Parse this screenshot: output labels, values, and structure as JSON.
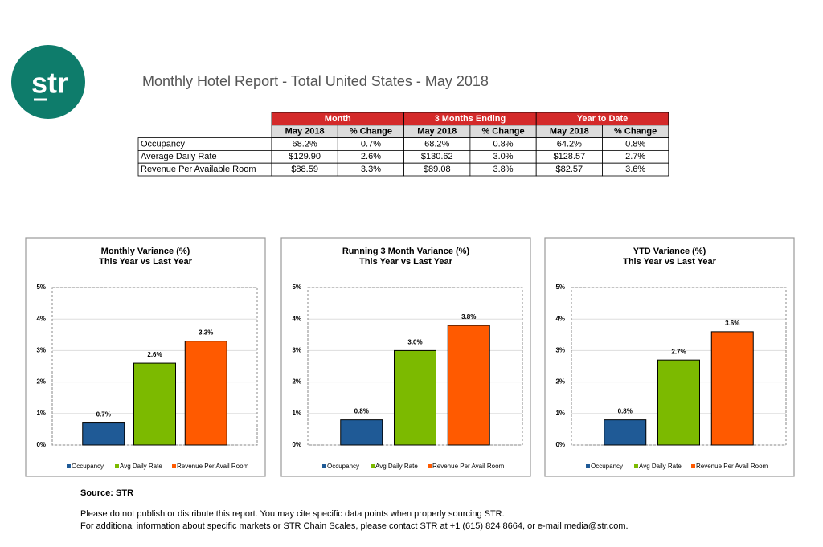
{
  "header": {
    "logo": "str",
    "title": "Monthly Hotel Report - Total United States - May 2018"
  },
  "table": {
    "groups": [
      "Month",
      "3 Months Ending",
      "Year to Date"
    ],
    "subheaders": [
      "May 2018",
      "% Change",
      "May 2018",
      "% Change",
      "May 2018",
      "% Change"
    ],
    "rows": [
      [
        "Occupancy",
        "68.2%",
        "0.7%",
        "68.2%",
        "0.8%",
        "64.2%",
        "0.8%"
      ],
      [
        "Average Daily Rate",
        "$129.90",
        "2.6%",
        "$130.62",
        "3.0%",
        "$128.57",
        "2.7%"
      ],
      [
        "Revenue Per Available Room",
        "$88.59",
        "3.3%",
        "$89.08",
        "3.8%",
        "$82.57",
        "3.6%"
      ]
    ]
  },
  "chart_data": [
    {
      "type": "bar",
      "title": "Monthly Variance (%)",
      "subtitle": "This Year vs Last Year",
      "categories": [
        null
      ],
      "series": [
        {
          "name": "Occupancy",
          "color": "#1f5a96",
          "values": [
            0.7
          ],
          "value_labels": [
            "0.7%"
          ]
        },
        {
          "name": "Avg Daily Rate",
          "color": "#7cba00",
          "values": [
            2.6
          ],
          "value_labels": [
            "2.6%"
          ]
        },
        {
          "name": "Revenue Per Avail Room",
          "color": "#ff5a00",
          "values": [
            3.3
          ],
          "value_labels": [
            "3.3%"
          ]
        }
      ],
      "ylim": [
        0,
        5
      ],
      "yticks": [
        {
          "value": 0,
          "label": "0%"
        },
        {
          "value": 1,
          "label": "1%"
        },
        {
          "value": 2,
          "label": "2%"
        },
        {
          "value": 3,
          "label": "3%"
        },
        {
          "value": 4,
          "label": "4%"
        },
        {
          "value": 5,
          "label": "5%"
        }
      ],
      "grid": true
    },
    {
      "type": "bar",
      "title": "Running 3 Month Variance (%)",
      "subtitle": "This Year vs Last Year",
      "categories": [
        null
      ],
      "series": [
        {
          "name": "Occupancy",
          "color": "#1f5a96",
          "values": [
            0.8
          ],
          "value_labels": [
            "0.8%"
          ]
        },
        {
          "name": "Avg Daily Rate",
          "color": "#7cba00",
          "values": [
            3.0
          ],
          "value_labels": [
            "3.0%"
          ]
        },
        {
          "name": "Revenue Per Avail Room",
          "color": "#ff5a00",
          "values": [
            3.8
          ],
          "value_labels": [
            "3.8%"
          ]
        }
      ],
      "ylim": [
        0,
        5
      ],
      "yticks": [
        {
          "value": 0,
          "label": "0%"
        },
        {
          "value": 1,
          "label": "1%"
        },
        {
          "value": 2,
          "label": "2%"
        },
        {
          "value": 3,
          "label": "3%"
        },
        {
          "value": 4,
          "label": "4%"
        },
        {
          "value": 5,
          "label": "5%"
        }
      ],
      "grid": true
    },
    {
      "type": "bar",
      "title": "YTD Variance (%)",
      "subtitle": "This Year vs Last Year",
      "categories": [
        null
      ],
      "series": [
        {
          "name": "Occupancy",
          "color": "#1f5a96",
          "values": [
            0.8
          ],
          "value_labels": [
            "0.8%"
          ]
        },
        {
          "name": "Avg Daily Rate",
          "color": "#7cba00",
          "values": [
            2.7
          ],
          "value_labels": [
            "2.7%"
          ]
        },
        {
          "name": "Revenue Per Avail Room",
          "color": "#ff5a00",
          "values": [
            3.6
          ],
          "value_labels": [
            "3.6%"
          ]
        }
      ],
      "ylim": [
        0,
        5
      ],
      "yticks": [
        {
          "value": 0,
          "label": "0%"
        },
        {
          "value": 1,
          "label": "1%"
        },
        {
          "value": 2,
          "label": "2%"
        },
        {
          "value": 3,
          "label": "3%"
        },
        {
          "value": 4,
          "label": "4%"
        },
        {
          "value": 5,
          "label": "5%"
        }
      ],
      "grid": true
    }
  ],
  "footer": {
    "source": "Source: STR",
    "lines": [
      "Please do not publish or distribute this report. You may cite specific data points when properly sourcing STR.",
      "For additional information about specific markets or STR Chain Scales, please contact STR at +1 (615) 824 8664, or e-mail media@str.com."
    ]
  }
}
